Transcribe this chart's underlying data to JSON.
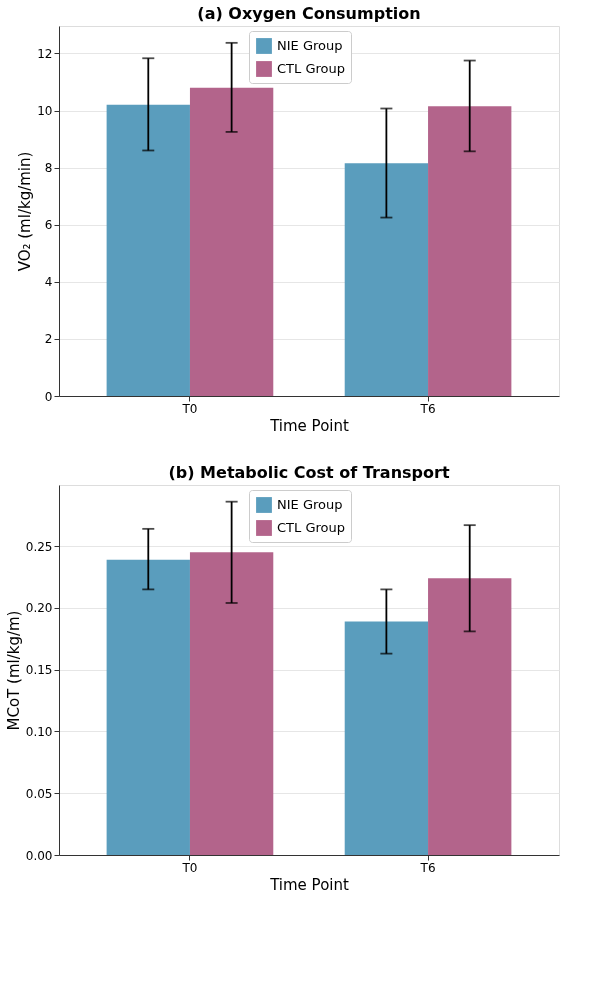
{
  "chart_data": [
    {
      "type": "bar",
      "title": "(a) Oxygen Consumption",
      "xlabel": "Time Point",
      "ylabel": "VO₂ (ml/kg/min)",
      "categories": [
        "T0",
        "T6"
      ],
      "series": [
        {
          "name": "NIE Group",
          "color": "#5a9dbd",
          "values": [
            10.2,
            8.15
          ],
          "errors": [
            [
              8.6,
              11.83
            ],
            [
              6.25,
              10.07
            ]
          ]
        },
        {
          "name": "CTL Group",
          "color": "#b3648b",
          "values": [
            10.8,
            10.15
          ],
          "errors": [
            [
              9.25,
              12.37
            ],
            [
              8.57,
              11.75
            ]
          ]
        }
      ],
      "ylim": [
        0,
        12.96
      ],
      "yticks": [
        0,
        2,
        4,
        6,
        8,
        10,
        12
      ],
      "grid": "y",
      "legend": "top"
    },
    {
      "type": "bar",
      "title": "(b) Metabolic Cost of Transport",
      "xlabel": "Time Point",
      "ylabel": "MCoT (ml/kg/m)",
      "categories": [
        "T0",
        "T6"
      ],
      "series": [
        {
          "name": "NIE Group",
          "color": "#5a9dbd",
          "values": [
            0.239,
            0.189
          ],
          "errors": [
            [
              0.215,
              0.264
            ],
            [
              0.163,
              0.215
            ]
          ]
        },
        {
          "name": "CTL Group",
          "color": "#b3648b",
          "values": [
            0.245,
            0.224
          ],
          "errors": [
            [
              0.204,
              0.286
            ],
            [
              0.181,
              0.267
            ]
          ]
        }
      ],
      "ylim": [
        0,
        0.2995
      ],
      "yticks": [
        {
          "value": 0,
          "label": "0.00"
        },
        {
          "value": 0.05,
          "label": "0.05"
        },
        {
          "value": 0.1,
          "label": "0.10"
        },
        {
          "value": 0.15,
          "label": "0.15"
        },
        {
          "value": 0.2,
          "label": "0.20"
        },
        {
          "value": 0.25,
          "label": "0.25"
        }
      ],
      "grid": "y",
      "legend": "top"
    }
  ]
}
